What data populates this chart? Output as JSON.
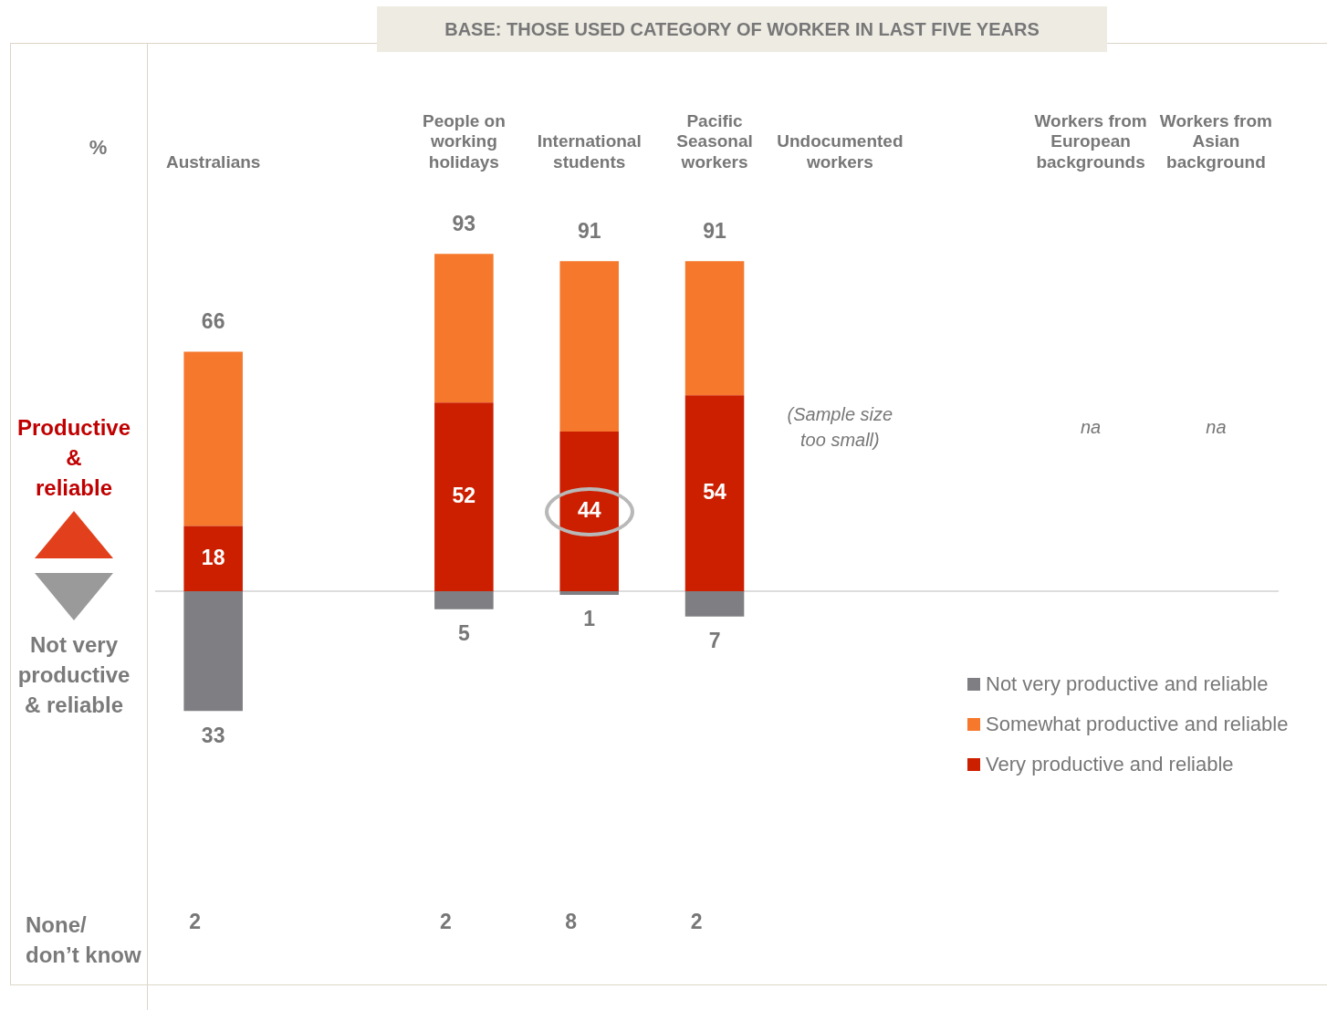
{
  "chart_data": {
    "type": "bar",
    "stacked": true,
    "legend": "bottom right",
    "data_labels": false,
    "title": "BASE: THOSE USED CATEGORY OF WORKER IN LAST FIVE YEARS",
    "ylabel": "%",
    "categories": [
      "Australians",
      null,
      "People on working holidays",
      "International students",
      "Pacific Seasonal workers",
      "Undocumented workers",
      null,
      "Workers from European backgrounds",
      "Workers from Asian background"
    ],
    "series": [
      {
        "name": "Very productive and reliable",
        "color": "#cc1f00",
        "values": [
          18,
          null,
          52,
          44,
          54,
          null,
          null,
          null,
          null
        ],
        "value_labels": [
          "18",
          null,
          "52",
          "44",
          "54",
          null,
          null,
          null,
          null
        ]
      },
      {
        "name": "Somewhat productive and reliable",
        "color": "#f5782d",
        "values": [
          48,
          null,
          41,
          47,
          37,
          null,
          null,
          null,
          null
        ]
      },
      {
        "name": "Not very productive and reliable",
        "color": "#7f7f83",
        "values": [
          -33,
          null,
          -5,
          -1,
          -7,
          null,
          null,
          null,
          null
        ]
      }
    ],
    "annotations": [
      "Productive & reliable",
      "Not very productive & reliable",
      "None/ don’t know",
      "(Sample size too small)",
      "na",
      "na",
      "2",
      "2",
      "8",
      "2",
      {
        "text": "66",
        "x": "Australians",
        "y": 66
      },
      {
        "text": "93",
        "x": "People on working holidays",
        "y": 93
      },
      {
        "text": "91",
        "x": "International students",
        "y": 91
      },
      {
        "text": "91",
        "x": "Pacific Seasonal workers",
        "y": 91
      },
      {
        "text": "33",
        "x": "Australians",
        "y": -33
      },
      {
        "text": "5",
        "x": "People on working holidays",
        "y": -5
      },
      {
        "text": "1",
        "x": "International students",
        "y": -1
      },
      {
        "text": "7",
        "x": "Pacific Seasonal workers",
        "y": -7
      }
    ]
  }
}
